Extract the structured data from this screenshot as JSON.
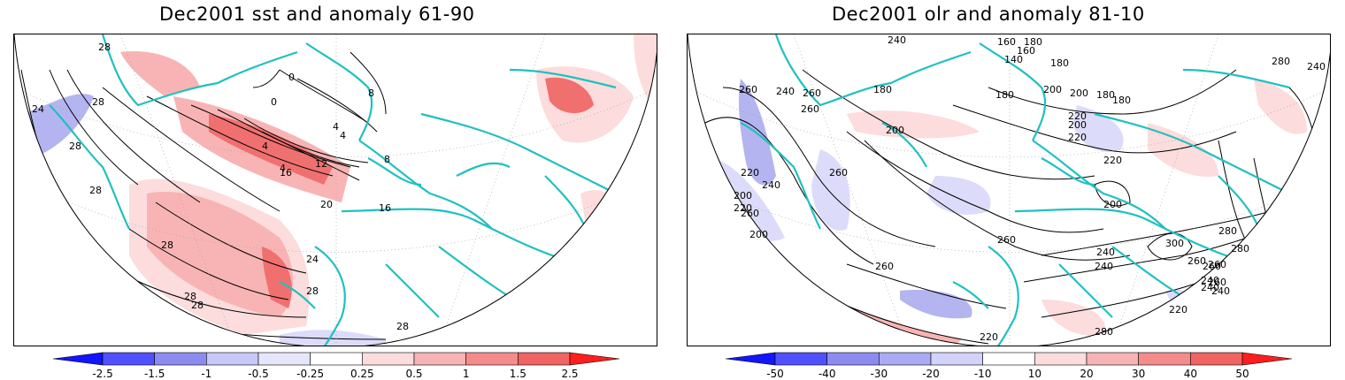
{
  "left_panel": {
    "title": "Dec2001 sst and anomaly 61-90",
    "contour_labels": [
      "28",
      "28",
      "28",
      "24",
      "28",
      "0",
      "0",
      "4",
      "4",
      "4",
      "8",
      "4",
      "16",
      "12",
      "16",
      "8",
      "20",
      "28",
      "24",
      "28",
      "28",
      "28",
      "28"
    ],
    "colorbar": {
      "ticks": [
        "-2.5",
        "-1.5",
        "-1",
        "-0.5",
        "-0.25",
        "0.25",
        "0.5",
        "1",
        "1.5",
        "2.5"
      ],
      "colors": [
        "#1414ff",
        "#5050ff",
        "#8c8cf0",
        "#c8c8f8",
        "#e6e6fa",
        "#ffffff",
        "#fcdcdc",
        "#f8b4b4",
        "#f48c8c",
        "#f06464",
        "#ff1e1e"
      ]
    }
  },
  "right_panel": {
    "title": "Dec2001 olr and anomaly 81-10",
    "contour_labels": [
      "240",
      "160",
      "180",
      "140",
      "160",
      "180",
      "280",
      "240",
      "180",
      "200",
      "220",
      "200",
      "180",
      "260",
      "240",
      "260",
      "180",
      "260",
      "200",
      "220",
      "220",
      "180",
      "220",
      "200",
      "260",
      "200",
      "220",
      "240",
      "260",
      "200",
      "200",
      "260",
      "240",
      "240",
      "260",
      "300",
      "280",
      "260",
      "260",
      "280",
      "260",
      "240",
      "260",
      "240",
      "240",
      "220",
      "280",
      "220",
      "240",
      "260"
    ],
    "colorbar": {
      "ticks": [
        "-50",
        "-40",
        "-30",
        "-20",
        "-10",
        "10",
        "20",
        "30",
        "40",
        "50"
      ],
      "colors": [
        "#1414ff",
        "#5050ff",
        "#8c8cf0",
        "#aaaaf5",
        "#d2d2fa",
        "#ffffff",
        "#fcdcdc",
        "#f8b4b4",
        "#f48c8c",
        "#f06464",
        "#ff1e1e"
      ]
    }
  },
  "map_colors": {
    "coast": "#20c0c0",
    "contour": "#000000",
    "anom_red_light": "#fcdcdc",
    "anom_red_mid": "#f8b4b4",
    "anom_red_strong": "#f07070",
    "anom_blue_light": "#dcdcfa",
    "anom_blue_mid": "#b4b4f0"
  }
}
